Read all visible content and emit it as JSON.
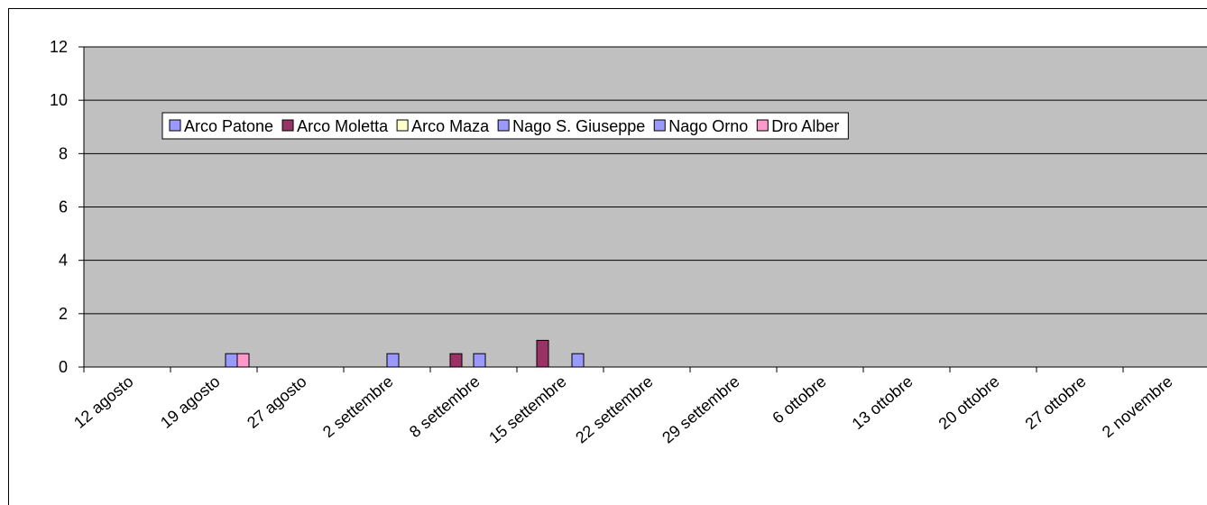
{
  "chart_data": {
    "type": "bar",
    "categories": [
      "12 agosto",
      "19 agosto",
      "27 agosto",
      "2 settembre",
      "8 settembre",
      "15 settembre",
      "22 settembre",
      "29 settembre",
      "6 ottobre",
      "13 ottobre",
      "20 ottobre",
      "27 ottobre",
      "2 novembre"
    ],
    "series": [
      {
        "name": "Arco Patone",
        "color": "#9999ff",
        "values": [
          0,
          0,
          0,
          0,
          0,
          0,
          0,
          0,
          0,
          0,
          0,
          0,
          0
        ]
      },
      {
        "name": "Arco Moletta",
        "color": "#993366",
        "values": [
          0,
          0,
          0,
          0,
          0.5,
          1,
          0,
          0,
          0,
          0,
          0,
          0,
          0
        ]
      },
      {
        "name": "Arco Maza",
        "color": "#ffffcc",
        "values": [
          0,
          0,
          0,
          0,
          0,
          0,
          0,
          0,
          0,
          0,
          0,
          0,
          0
        ]
      },
      {
        "name": "Nago S. Giuseppe",
        "color": "#9999ff",
        "values": [
          0,
          0,
          0,
          0.5,
          0.5,
          0,
          0,
          0,
          0,
          0,
          0,
          0,
          0
        ]
      },
      {
        "name": "Nago Orno",
        "color": "#9999ff",
        "values": [
          0,
          0.5,
          0,
          0,
          0,
          0.5,
          0,
          0,
          0,
          0,
          0,
          0,
          0
        ]
      },
      {
        "name": "Dro Alber",
        "color": "#ff99cc",
        "values": [
          0,
          0.5,
          0,
          0,
          0,
          0,
          0,
          0,
          0,
          0,
          0,
          0,
          0
        ]
      }
    ],
    "ylim": [
      0,
      12
    ],
    "yticks": [
      0,
      2,
      4,
      6,
      8,
      10,
      12
    ],
    "grid": true,
    "legend": "top"
  }
}
